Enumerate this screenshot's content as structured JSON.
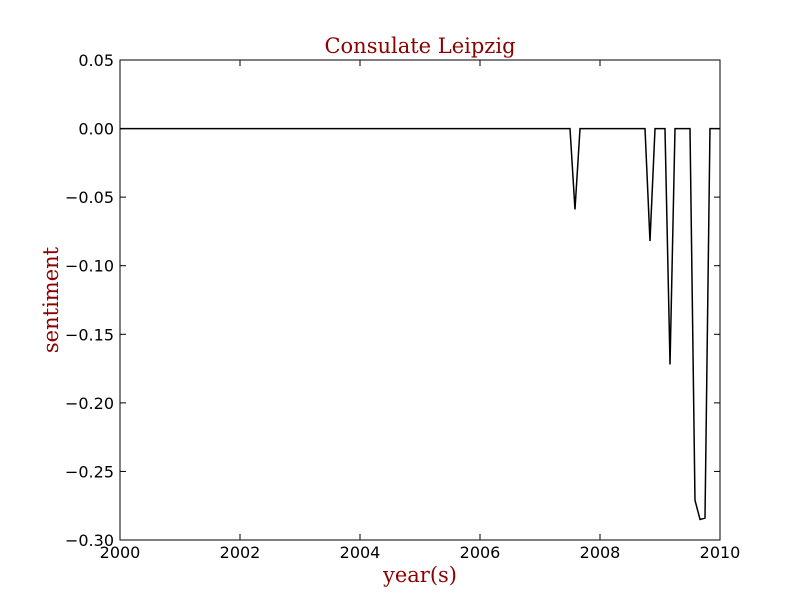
{
  "chart_data": {
    "type": "line",
    "title": "Consulate Leipzig",
    "xlabel": "year(s)",
    "ylabel": "sentiment",
    "xlim": [
      2000,
      2010
    ],
    "ylim": [
      -0.3,
      0.05
    ],
    "grid": false,
    "x_ticks": [
      {
        "value": 2000,
        "label": "2000"
      },
      {
        "value": 2002,
        "label": "2002"
      },
      {
        "value": 2004,
        "label": "2004"
      },
      {
        "value": 2006,
        "label": "2006"
      },
      {
        "value": 2008,
        "label": "2008"
      },
      {
        "value": 2010,
        "label": "2010"
      }
    ],
    "y_ticks": [
      {
        "value": 0.05,
        "label": "0.05"
      },
      {
        "value": 0.0,
        "label": "0.00"
      },
      {
        "value": -0.05,
        "label": "−0.05"
      },
      {
        "value": -0.1,
        "label": "−0.10"
      },
      {
        "value": -0.15,
        "label": "−0.15"
      },
      {
        "value": -0.2,
        "label": "−0.20"
      },
      {
        "value": -0.25,
        "label": "−0.25"
      },
      {
        "value": -0.3,
        "label": "−0.30"
      }
    ],
    "series": [
      {
        "color": "#000000",
        "x": [
          2000.0,
          2007.5,
          2007.583,
          2007.667,
          2008.75,
          2008.833,
          2008.917,
          2009.083,
          2009.167,
          2009.25,
          2009.5,
          2009.583,
          2009.667,
          2009.75,
          2009.833,
          2010.0
        ],
        "y": [
          0.0,
          0.0,
          -0.059,
          0.0,
          0.0,
          -0.082,
          0.0,
          0.0,
          -0.172,
          0.0,
          0.0,
          -0.271,
          -0.285,
          -0.284,
          0.0,
          0.0
        ]
      }
    ]
  }
}
